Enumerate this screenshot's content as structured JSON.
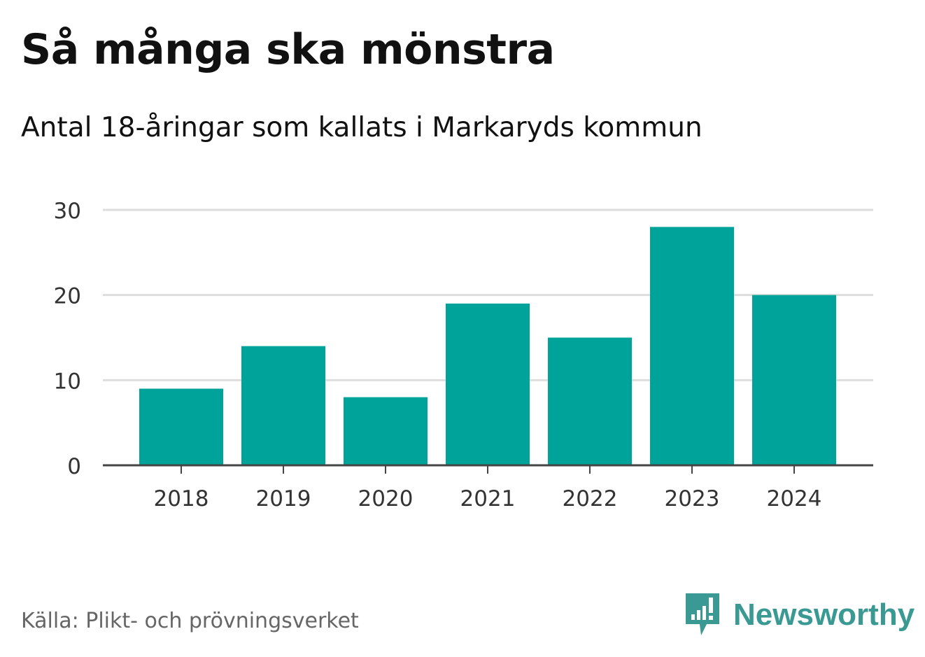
{
  "header": {
    "title": "Så många ska mönstra",
    "subtitle": "Antal 18-åringar som kallats i Markaryds kommun"
  },
  "footer": {
    "source": "Källa: Plikt- och prövningsverket",
    "brand": "Newsworthy",
    "brand_icon": "newsworthy-logo-icon"
  },
  "colors": {
    "bar": "#00a39a",
    "grid": "#dddddd",
    "axis": "#444444",
    "brand": "#3a9a93"
  },
  "chart_data": {
    "type": "bar",
    "categories": [
      "2018",
      "2019",
      "2020",
      "2021",
      "2022",
      "2023",
      "2024"
    ],
    "values": [
      9,
      14,
      8,
      19,
      15,
      28,
      20
    ],
    "ylim": [
      0,
      30
    ],
    "yticks": [
      0,
      10,
      20,
      30
    ],
    "grid": true,
    "legend": "none"
  }
}
